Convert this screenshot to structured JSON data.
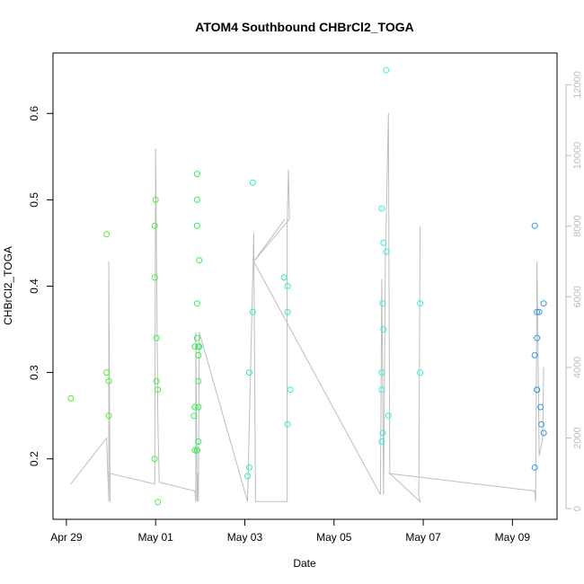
{
  "chart_data": {
    "type": "scatter",
    "title": "ATOM4 Southbound CHBrCl2_TOGA",
    "xlabel": "Date",
    "ylabel": "CHBrCl2_TOGA",
    "x_tick_labels": [
      "Apr 29",
      "May 01",
      "May 03",
      "May 05",
      "May 07",
      "May 09"
    ],
    "x_tick_days": [
      0,
      2,
      4,
      6,
      8,
      10
    ],
    "xlim": [
      -0.3,
      11.0
    ],
    "ylim": [
      0.13,
      0.67
    ],
    "y_ticks": [
      0.2,
      0.3,
      0.4,
      0.5,
      0.6
    ],
    "y_tick_labels": [
      "0.2",
      "0.3",
      "0.4",
      "0.5",
      "0.6"
    ],
    "y2lim": [
      -300,
      12900
    ],
    "y2_ticks": [
      0,
      2000,
      4000,
      6000,
      8000,
      10000,
      12000
    ],
    "y2_tick_labels": [
      "0",
      "2000",
      "4000",
      "6000",
      "8000",
      "10000",
      "12000"
    ],
    "x_unit": "days since Apr 29",
    "points": [
      {
        "x": 0.1,
        "y": 0.27,
        "color": "#55ee33"
      },
      {
        "x": 0.9,
        "y": 0.46,
        "color": "#55ee33"
      },
      {
        "x": 0.9,
        "y": 0.3,
        "color": "#55ee33"
      },
      {
        "x": 0.95,
        "y": 0.29,
        "color": "#55ee33"
      },
      {
        "x": 0.95,
        "y": 0.25,
        "color": "#55ee33"
      },
      {
        "x": 2.0,
        "y": 0.5,
        "color": "#44ee44"
      },
      {
        "x": 1.98,
        "y": 0.47,
        "color": "#44ee44"
      },
      {
        "x": 1.98,
        "y": 0.41,
        "color": "#44ee44"
      },
      {
        "x": 2.02,
        "y": 0.34,
        "color": "#44ee44"
      },
      {
        "x": 2.02,
        "y": 0.29,
        "color": "#44ee44"
      },
      {
        "x": 2.05,
        "y": 0.28,
        "color": "#44ee44"
      },
      {
        "x": 1.98,
        "y": 0.2,
        "color": "#44ee44"
      },
      {
        "x": 2.05,
        "y": 0.15,
        "color": "#44ee44"
      },
      {
        "x": 2.93,
        "y": 0.53,
        "color": "#33ee55"
      },
      {
        "x": 2.93,
        "y": 0.5,
        "color": "#33ee55"
      },
      {
        "x": 2.93,
        "y": 0.47,
        "color": "#33ee55"
      },
      {
        "x": 2.98,
        "y": 0.43,
        "color": "#33ee55"
      },
      {
        "x": 2.93,
        "y": 0.38,
        "color": "#33ee55"
      },
      {
        "x": 2.93,
        "y": 0.34,
        "color": "#33ee55"
      },
      {
        "x": 2.88,
        "y": 0.33,
        "color": "#33ee55"
      },
      {
        "x": 2.96,
        "y": 0.33,
        "color": "#33ee55"
      },
      {
        "x": 2.98,
        "y": 0.33,
        "color": "#33ee55"
      },
      {
        "x": 2.96,
        "y": 0.32,
        "color": "#33ee55"
      },
      {
        "x": 2.96,
        "y": 0.29,
        "color": "#33ee55"
      },
      {
        "x": 2.88,
        "y": 0.26,
        "color": "#33ee55"
      },
      {
        "x": 2.96,
        "y": 0.26,
        "color": "#33ee55"
      },
      {
        "x": 2.86,
        "y": 0.25,
        "color": "#33ee55"
      },
      {
        "x": 2.96,
        "y": 0.22,
        "color": "#33ee55"
      },
      {
        "x": 2.88,
        "y": 0.21,
        "color": "#33ee55"
      },
      {
        "x": 2.93,
        "y": 0.21,
        "color": "#33ee55"
      },
      {
        "x": 4.18,
        "y": 0.52,
        "color": "#33eeaa"
      },
      {
        "x": 4.18,
        "y": 0.37,
        "color": "#33eeaa"
      },
      {
        "x": 4.1,
        "y": 0.3,
        "color": "#33eeaa"
      },
      {
        "x": 4.1,
        "y": 0.19,
        "color": "#33eeaa"
      },
      {
        "x": 4.06,
        "y": 0.18,
        "color": "#33eeaa"
      },
      {
        "x": 4.88,
        "y": 0.41,
        "color": "#33eeaa"
      },
      {
        "x": 4.96,
        "y": 0.4,
        "color": "#33eeaa"
      },
      {
        "x": 4.96,
        "y": 0.37,
        "color": "#33eeaa"
      },
      {
        "x": 5.02,
        "y": 0.28,
        "color": "#33eeaa"
      },
      {
        "x": 4.96,
        "y": 0.24,
        "color": "#33eeaa"
      },
      {
        "x": 7.17,
        "y": 0.65,
        "color": "#33eedd"
      },
      {
        "x": 7.07,
        "y": 0.49,
        "color": "#33eedd"
      },
      {
        "x": 7.11,
        "y": 0.45,
        "color": "#33eedd"
      },
      {
        "x": 7.17,
        "y": 0.44,
        "color": "#33eedd"
      },
      {
        "x": 7.09,
        "y": 0.38,
        "color": "#33eedd"
      },
      {
        "x": 7.11,
        "y": 0.35,
        "color": "#33eedd"
      },
      {
        "x": 7.07,
        "y": 0.3,
        "color": "#33eedd"
      },
      {
        "x": 7.07,
        "y": 0.28,
        "color": "#33eedd"
      },
      {
        "x": 7.22,
        "y": 0.25,
        "color": "#33eedd"
      },
      {
        "x": 7.09,
        "y": 0.23,
        "color": "#33eedd"
      },
      {
        "x": 7.07,
        "y": 0.22,
        "color": "#33eedd"
      },
      {
        "x": 7.93,
        "y": 0.38,
        "color": "#33eedd"
      },
      {
        "x": 7.93,
        "y": 0.3,
        "color": "#33eedd"
      },
      {
        "x": 10.5,
        "y": 0.47,
        "color": "#3399dd"
      },
      {
        "x": 10.55,
        "y": 0.37,
        "color": "#3399dd"
      },
      {
        "x": 10.6,
        "y": 0.37,
        "color": "#3399dd"
      },
      {
        "x": 10.7,
        "y": 0.38,
        "color": "#3399dd"
      },
      {
        "x": 10.55,
        "y": 0.34,
        "color": "#3399dd"
      },
      {
        "x": 10.5,
        "y": 0.32,
        "color": "#3399dd"
      },
      {
        "x": 10.55,
        "y": 0.28,
        "color": "#3399dd"
      },
      {
        "x": 10.55,
        "y": 0.28,
        "color": "#3399dd"
      },
      {
        "x": 10.63,
        "y": 0.26,
        "color": "#3399dd"
      },
      {
        "x": 10.65,
        "y": 0.24,
        "color": "#3399dd"
      },
      {
        "x": 10.7,
        "y": 0.23,
        "color": "#3399dd"
      },
      {
        "x": 10.5,
        "y": 0.19,
        "color": "#3399dd"
      }
    ],
    "secondary_line": {
      "color": "#bebebe",
      "points": [
        [
          0.1,
          700
        ],
        [
          0.9,
          2000
        ],
        [
          0.95,
          200
        ],
        [
          0.95,
          7000
        ],
        [
          0.98,
          200
        ],
        [
          0.98,
          1000
        ],
        [
          1.98,
          700
        ],
        [
          2.0,
          10200
        ],
        [
          2.05,
          2500
        ],
        [
          2.08,
          750
        ],
        [
          2.88,
          500
        ],
        [
          2.9,
          200
        ],
        [
          2.9,
          5000
        ],
        [
          2.93,
          200
        ],
        [
          2.95,
          1000
        ],
        [
          2.96,
          200
        ],
        [
          2.98,
          5000
        ],
        [
          4.06,
          200
        ],
        [
          4.2,
          7800
        ],
        [
          4.24,
          200
        ],
        [
          4.95,
          200
        ],
        [
          4.95,
          8000
        ],
        [
          4.98,
          9600
        ],
        [
          5.0,
          8200
        ],
        [
          4.2,
          7000
        ],
        [
          7.04,
          400
        ],
        [
          7.07,
          6500
        ],
        [
          7.11,
          400
        ],
        [
          7.15,
          7000
        ],
        [
          7.22,
          11200
        ],
        [
          7.25,
          1000
        ],
        [
          7.93,
          200
        ],
        [
          7.9,
          400
        ],
        [
          7.93,
          8000
        ]
      ]
    },
    "secondary_line_2": {
      "points": [
        [
          7.22,
          1000
        ],
        [
          10.5,
          500
        ],
        [
          10.52,
          200
        ],
        [
          10.55,
          7000
        ],
        [
          10.6,
          1500
        ],
        [
          10.68,
          2000
        ],
        [
          10.7,
          4000
        ]
      ]
    },
    "secondary_line_3": {
      "points": [
        [
          4.9,
          8200
        ],
        [
          4.2,
          7000
        ]
      ]
    },
    "grid": false
  }
}
